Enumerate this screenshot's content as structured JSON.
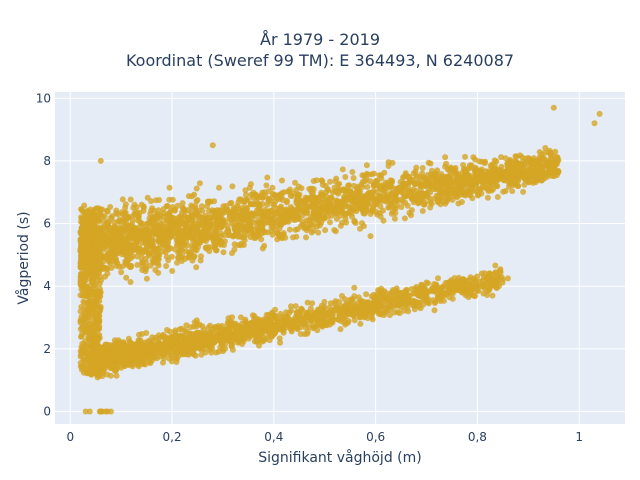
{
  "chart_data": {
    "type": "scatter",
    "title_line1": "År 1979 - 2019",
    "title_line2": "Koordinat (Sweref 99 TM): E 364493, N 6240087",
    "xlabel": "Signifikant våghöjd (m)",
    "ylabel": "Vågperiod (s)",
    "xlim": [
      -0.03,
      1.09
    ],
    "ylim": [
      -0.4,
      10.2
    ],
    "x_ticks": [
      {
        "value": 0,
        "label": "0"
      },
      {
        "value": 0.2,
        "label": "0,2"
      },
      {
        "value": 0.4,
        "label": "0,4"
      },
      {
        "value": 0.6,
        "label": "0,6"
      },
      {
        "value": 0.8,
        "label": "0,8"
      },
      {
        "value": 1.0,
        "label": "1"
      }
    ],
    "y_ticks": [
      {
        "value": 0,
        "label": "0"
      },
      {
        "value": 2,
        "label": "2"
      },
      {
        "value": 4,
        "label": "4"
      },
      {
        "value": 6,
        "label": "6"
      },
      {
        "value": 8,
        "label": "8"
      },
      {
        "value": 10,
        "label": "10"
      }
    ],
    "grid": true,
    "marker_color": "#d4a524",
    "plot_background": "#e5ecf6",
    "clusters": [
      {
        "x_min": 0.02,
        "x_max": 0.08,
        "y": 0.0,
        "spread": 0.02
      },
      {
        "x_min": 0.02,
        "x_max": 0.06,
        "y_min": 1.2,
        "y_max": 6.5
      },
      {
        "x_min": 0.02,
        "x_max": 0.96,
        "y_start": 5.2,
        "y_end": 7.9,
        "spread": 1.1
      },
      {
        "x_min": 0.04,
        "x_max": 0.85,
        "y_start": 1.6,
        "y_end": 4.2,
        "spread": 0.5
      }
    ],
    "sample_points": [
      {
        "x": 0.06,
        "y": 8.0
      },
      {
        "x": 0.28,
        "y": 8.5
      },
      {
        "x": 0.95,
        "y": 9.7
      },
      {
        "x": 1.04,
        "y": 9.5
      },
      {
        "x": 1.03,
        "y": 9.2
      },
      {
        "x": 0.86,
        "y": 4.25
      },
      {
        "x": 0.83,
        "y": 4.2
      },
      {
        "x": 0.78,
        "y": 4.0
      },
      {
        "x": 0.59,
        "y": 5.6
      },
      {
        "x": 0.45,
        "y": 2.9
      }
    ]
  }
}
